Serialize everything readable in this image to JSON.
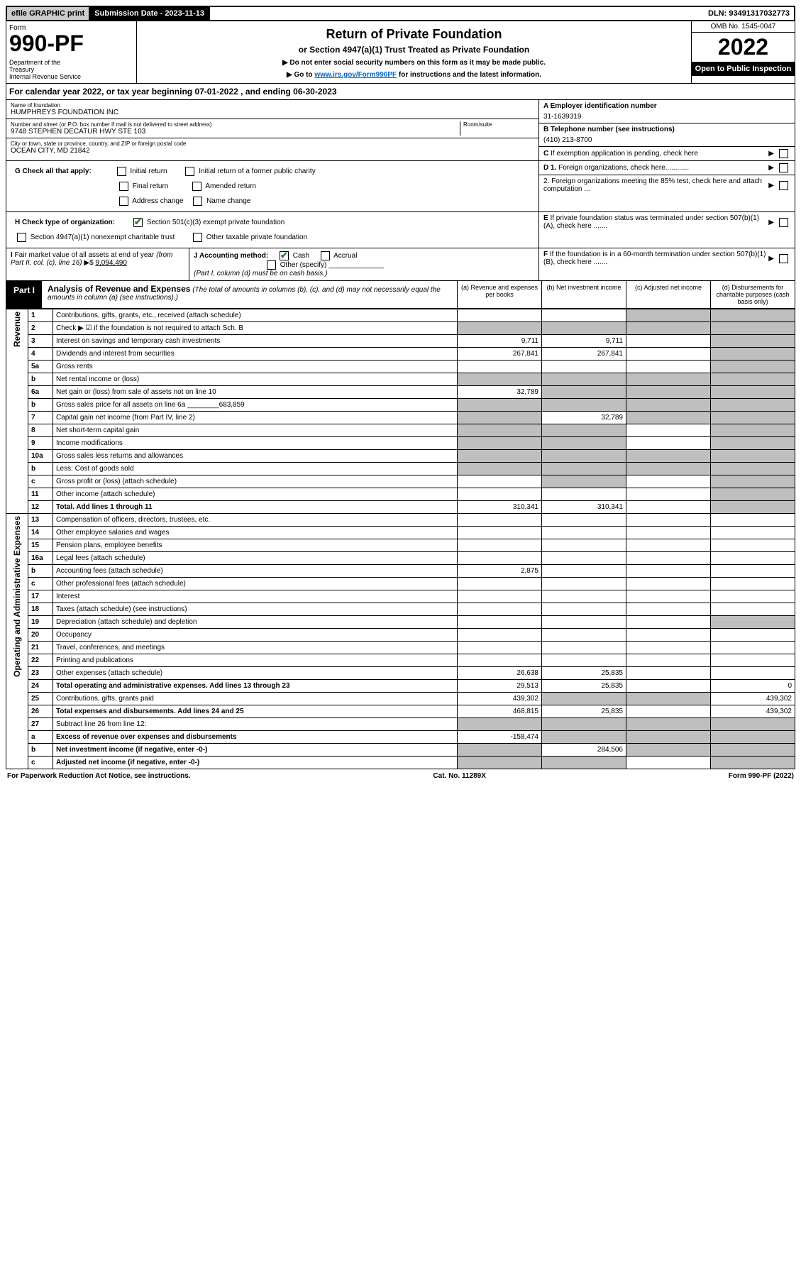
{
  "topbar": {
    "efile": "efile GRAPHIC print",
    "submission_label": "Submission Date - 2023-11-13",
    "dln": "DLN: 93491317032773"
  },
  "header": {
    "form_word": "Form",
    "form_number": "990-PF",
    "dept": "Department of the Treasury\nInternal Revenue Service",
    "title": "Return of Private Foundation",
    "subtitle": "or Section 4947(a)(1) Trust Treated as Private Foundation",
    "instruct1": "▶ Do not enter social security numbers on this form as it may be made public.",
    "instruct2_pre": "▶ Go to ",
    "instruct2_link": "www.irs.gov/Form990PF",
    "instruct2_post": " for instructions and the latest information.",
    "omb": "OMB No. 1545-0047",
    "year": "2022",
    "open": "Open to Public Inspection"
  },
  "cal_year": "For calendar year 2022, or tax year beginning 07-01-2022          , and ending 06-30-2023",
  "foundation": {
    "name_label": "Name of foundation",
    "name": "HUMPHREYS FOUNDATION INC",
    "addr_label": "Number and street (or P.O. box number if mail is not delivered to street address)",
    "addr": "9748 STEPHEN DECATUR HWY STE 103",
    "room_label": "Room/suite",
    "city_label": "City or town, state or province, country, and ZIP or foreign postal code",
    "city": "OCEAN CITY, MD  21842",
    "ein_label": "A Employer identification number",
    "ein": "31-1639319",
    "tel_label": "B Telephone number (see instructions)",
    "tel": "(410) 213-8700",
    "c_label": "C If exemption application is pending, check here"
  },
  "checks": {
    "g_label": "G Check all that apply:",
    "g_items": [
      "Initial return",
      "Initial return of a former public charity",
      "Final return",
      "Amended return",
      "Address change",
      "Name change"
    ],
    "h_label": "H Check type of organization:",
    "h_501c3": "Section 501(c)(3) exempt private foundation",
    "h_4947": "Section 4947(a)(1) nonexempt charitable trust",
    "h_other": "Other taxable private foundation",
    "i_label": "I Fair market value of all assets at end of year (from Part II, col. (c), line 16) ▶$",
    "i_value": "9,094,490",
    "j_label": "J Accounting method:",
    "j_cash": "Cash",
    "j_accrual": "Accrual",
    "j_other": "Other (specify)",
    "j_note": "(Part I, column (d) must be on cash basis.)",
    "d1": "D 1. Foreign organizations, check here............",
    "d2": "2. Foreign organizations meeting the 85% test, check here and attach computation ...",
    "e": "E  If private foundation status was terminated under section 507(b)(1)(A), check here .......",
    "f": "F  If the foundation is in a 60-month termination under section 507(b)(1)(B), check here .......",
    "blank": ""
  },
  "part1": {
    "label": "Part I",
    "title": "Analysis of Revenue and Expenses",
    "note": "(The total of amounts in columns (b), (c), and (d) may not necessarily equal the amounts in column (a) (see instructions).)",
    "col_a": "(a)  Revenue and expenses per books",
    "col_b": "(b)  Net investment income",
    "col_c": "(c)  Adjusted net income",
    "col_d": "(d)  Disbursements for charitable purposes (cash basis only)"
  },
  "side_labels": {
    "revenue": "Revenue",
    "expenses": "Operating and Administrative Expenses"
  },
  "lines": [
    {
      "no": "1",
      "desc": "Contributions, gifts, grants, etc., received (attach schedule)",
      "a": "",
      "b": "",
      "c_shade": true,
      "d_shade": true
    },
    {
      "no": "2",
      "desc": "Check ▶ ☑ if the foundation is not required to attach Sch. B",
      "a_shade": true,
      "b_shade": true,
      "c_shade": true,
      "d_shade": true,
      "bold_not": true
    },
    {
      "no": "3",
      "desc": "Interest on savings and temporary cash investments",
      "a": "9,711",
      "b": "9,711",
      "c": "",
      "d_shade": true
    },
    {
      "no": "4",
      "desc": "Dividends and interest from securities",
      "a": "267,841",
      "b": "267,841",
      "c": "",
      "d_shade": true
    },
    {
      "no": "5a",
      "desc": "Gross rents",
      "a": "",
      "b": "",
      "c": "",
      "d_shade": true
    },
    {
      "no": "b",
      "desc": "Net rental income or (loss)",
      "a_shade": true,
      "b_shade": true,
      "c_shade": true,
      "d_shade": true,
      "inset": true
    },
    {
      "no": "6a",
      "desc": "Net gain or (loss) from sale of assets not on line 10",
      "a": "32,789",
      "b_shade": true,
      "c_shade": true,
      "d_shade": true
    },
    {
      "no": "b",
      "desc": "Gross sales price for all assets on line 6a",
      "inset_val": "683,859",
      "a_shade": true,
      "b_shade": true,
      "c_shade": true,
      "d_shade": true
    },
    {
      "no": "7",
      "desc": "Capital gain net income (from Part IV, line 2)",
      "a_shade": true,
      "b": "32,789",
      "c_shade": true,
      "d_shade": true
    },
    {
      "no": "8",
      "desc": "Net short-term capital gain",
      "a_shade": true,
      "b_shade": true,
      "c": "",
      "d_shade": true
    },
    {
      "no": "9",
      "desc": "Income modifications",
      "a_shade": true,
      "b_shade": true,
      "c": "",
      "d_shade": true
    },
    {
      "no": "10a",
      "desc": "Gross sales less returns and allowances",
      "a_shade": true,
      "b_shade": true,
      "c_shade": true,
      "d_shade": true,
      "inset": true
    },
    {
      "no": "b",
      "desc": "Less: Cost of goods sold",
      "a_shade": true,
      "b_shade": true,
      "c_shade": true,
      "d_shade": true,
      "inset": true
    },
    {
      "no": "c",
      "desc": "Gross profit or (loss) (attach schedule)",
      "a": "",
      "b_shade": true,
      "c": "",
      "d_shade": true
    },
    {
      "no": "11",
      "desc": "Other income (attach schedule)",
      "a": "",
      "b": "",
      "c": "",
      "d_shade": true
    },
    {
      "no": "12",
      "desc": "Total. Add lines 1 through 11",
      "a": "310,341",
      "b": "310,341",
      "c": "",
      "d_shade": true,
      "bold": true
    }
  ],
  "exp_lines": [
    {
      "no": "13",
      "desc": "Compensation of officers, directors, trustees, etc.",
      "a": "",
      "b": "",
      "c": "",
      "d": ""
    },
    {
      "no": "14",
      "desc": "Other employee salaries and wages",
      "a": "",
      "b": "",
      "c": "",
      "d": ""
    },
    {
      "no": "15",
      "desc": "Pension plans, employee benefits",
      "a": "",
      "b": "",
      "c": "",
      "d": ""
    },
    {
      "no": "16a",
      "desc": "Legal fees (attach schedule)",
      "a": "",
      "b": "",
      "c": "",
      "d": ""
    },
    {
      "no": "b",
      "desc": "Accounting fees (attach schedule)",
      "a": "2,875",
      "b": "",
      "c": "",
      "d": ""
    },
    {
      "no": "c",
      "desc": "Other professional fees (attach schedule)",
      "a": "",
      "b": "",
      "c": "",
      "d": ""
    },
    {
      "no": "17",
      "desc": "Interest",
      "a": "",
      "b": "",
      "c": "",
      "d": ""
    },
    {
      "no": "18",
      "desc": "Taxes (attach schedule) (see instructions)",
      "a": "",
      "b": "",
      "c": "",
      "d": ""
    },
    {
      "no": "19",
      "desc": "Depreciation (attach schedule) and depletion",
      "a": "",
      "b": "",
      "c": "",
      "d_shade": true
    },
    {
      "no": "20",
      "desc": "Occupancy",
      "a": "",
      "b": "",
      "c": "",
      "d": ""
    },
    {
      "no": "21",
      "desc": "Travel, conferences, and meetings",
      "a": "",
      "b": "",
      "c": "",
      "d": ""
    },
    {
      "no": "22",
      "desc": "Printing and publications",
      "a": "",
      "b": "",
      "c": "",
      "d": ""
    },
    {
      "no": "23",
      "desc": "Other expenses (attach schedule)",
      "a": "26,638",
      "b": "25,835",
      "c": "",
      "d": ""
    },
    {
      "no": "24",
      "desc": "Total operating and administrative expenses. Add lines 13 through 23",
      "a": "29,513",
      "b": "25,835",
      "c": "",
      "d": "0",
      "bold": true
    },
    {
      "no": "25",
      "desc": "Contributions, gifts, grants paid",
      "a": "439,302",
      "b_shade": true,
      "c_shade": true,
      "d": "439,302"
    },
    {
      "no": "26",
      "desc": "Total expenses and disbursements. Add lines 24 and 25",
      "a": "468,815",
      "b": "25,835",
      "c": "",
      "d": "439,302",
      "bold": true
    },
    {
      "no": "27",
      "desc": "Subtract line 26 from line 12:",
      "a_shade": true,
      "b_shade": true,
      "c_shade": true,
      "d_shade": true
    },
    {
      "no": "a",
      "desc": "Excess of revenue over expenses and disbursements",
      "a": "-158,474",
      "b_shade": true,
      "c_shade": true,
      "d_shade": true,
      "bold": true
    },
    {
      "no": "b",
      "desc": "Net investment income (if negative, enter -0-)",
      "a_shade": true,
      "b": "284,506",
      "c_shade": true,
      "d_shade": true,
      "bold": true
    },
    {
      "no": "c",
      "desc": "Adjusted net income (if negative, enter -0-)",
      "a_shade": true,
      "b_shade": true,
      "c": "",
      "d_shade": true,
      "bold": true
    }
  ],
  "footer": {
    "left": "For Paperwork Reduction Act Notice, see instructions.",
    "center": "Cat. No. 11289X",
    "right": "Form 990-PF (2022)"
  }
}
